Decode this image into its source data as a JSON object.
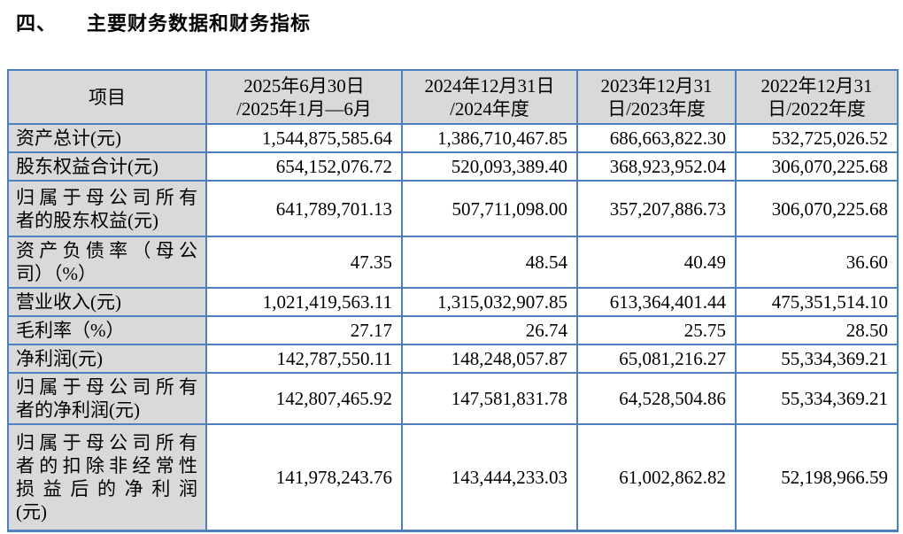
{
  "page": {
    "title_number": "四、",
    "title_text": "主要财务数据和财务指标"
  },
  "colors": {
    "table_border": "#4E80BD",
    "header_fill": "#D9D9D9",
    "text": "#000000"
  },
  "table": {
    "header": [
      {
        "lines": [
          "项目"
        ]
      },
      {
        "lines": [
          "2025年6月30日",
          "/2025年1月—6月"
        ]
      },
      {
        "lines": [
          "2024年12月31日",
          "/2024年度"
        ]
      },
      {
        "lines": [
          "2023年12月31",
          "日/2023年度"
        ]
      },
      {
        "lines": [
          "2022年12月31",
          "日/2022年度"
        ]
      }
    ],
    "rows": [
      {
        "label_lines": [
          "资产总计(元)"
        ],
        "values": [
          "1,544,875,585.64",
          "1,386,710,467.85",
          "686,663,822.30",
          "532,725,026.52"
        ]
      },
      {
        "label_lines": [
          "股东权益合计(元)"
        ],
        "values": [
          "654,152,076.72",
          "520,093,389.40",
          "368,923,952.04",
          "306,070,225.68"
        ]
      },
      {
        "label_lines": [
          "归属于母公司所有",
          "者的股东权益(元)"
        ],
        "values": [
          "641,789,701.13",
          "507,711,098.00",
          "357,207,886.73",
          "306,070,225.68"
        ]
      },
      {
        "label_lines": [
          "资产负债率（母公",
          "司）（%）"
        ],
        "values": [
          "47.35",
          "48.54",
          "40.49",
          "36.60"
        ]
      },
      {
        "label_lines": [
          "营业收入(元)"
        ],
        "values": [
          "1,021,419,563.11",
          "1,315,032,907.85",
          "613,364,401.44",
          "475,351,514.10"
        ]
      },
      {
        "label_lines": [
          "毛利率（%）"
        ],
        "values": [
          "27.17",
          "26.74",
          "25.75",
          "28.50"
        ]
      },
      {
        "label_lines": [
          "净利润(元)"
        ],
        "values": [
          "142,787,550.11",
          "148,248,057.87",
          "65,081,216.27",
          "55,334,369.21"
        ]
      },
      {
        "label_lines": [
          "归属于母公司所有",
          "者的净利润(元)"
        ],
        "values": [
          "142,807,465.92",
          "147,581,831.78",
          "64,528,504.86",
          "55,334,369.21"
        ]
      },
      {
        "label_lines": [
          "归属于母公司所有",
          "者的扣除非经常性",
          "损益后的净利润",
          "(元)"
        ],
        "values": [
          "141,978,243.76",
          "143,444,233.03",
          "61,002,862.82",
          "52,198,966.59"
        ]
      }
    ]
  }
}
